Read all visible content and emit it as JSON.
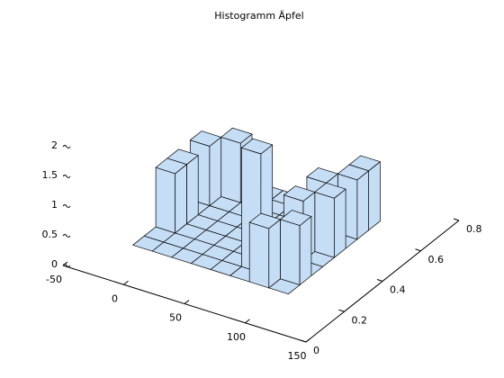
{
  "chart_data": {
    "type": "bar3d",
    "title": "Histogramm Äpfel",
    "xbins": [
      -24,
      -8,
      8,
      24,
      40,
      56,
      72,
      88,
      104
    ],
    "ybins": [
      0.2,
      0.26,
      0.32,
      0.38,
      0.44,
      0.5,
      0.56,
      0.62,
      0.68
    ],
    "counts": [
      [
        0,
        0,
        1,
        1,
        0,
        1,
        0,
        0
      ],
      [
        0,
        0,
        0,
        0,
        0,
        0,
        1,
        0
      ],
      [
        0,
        0,
        0,
        0,
        0,
        0,
        0,
        0
      ],
      [
        0,
        0,
        0,
        0,
        0,
        0,
        0,
        0
      ],
      [
        0,
        0,
        0,
        0,
        0,
        0,
        0,
        0
      ],
      [
        0,
        2,
        0,
        0,
        0,
        0,
        0,
        0
      ],
      [
        1,
        0,
        0,
        1,
        0,
        1,
        0,
        0
      ],
      [
        0,
        1,
        0,
        0,
        1,
        0,
        1,
        1
      ]
    ],
    "color": "#c6ddf6",
    "xlim": [
      -50,
      150
    ],
    "xticks": [
      -50,
      0,
      50,
      100,
      150
    ],
    "ylim": [
      0,
      0.8
    ],
    "yticks": [
      0,
      0.2,
      0.4,
      0.6,
      0.8
    ],
    "zlim": [
      0,
      2
    ],
    "zticks": [
      0,
      0.5,
      1,
      1.5,
      2
    ]
  }
}
